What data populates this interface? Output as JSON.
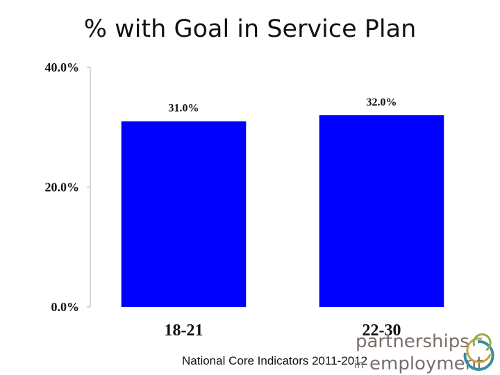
{
  "slide": {
    "title": "% with Goal in Service Plan",
    "source": "National Core Indicators 2011-2012"
  },
  "logo": {
    "line1": "partnerships",
    "line2_prefix": "in",
    "line2": "employment",
    "colors": {
      "text": "#7a6e6a",
      "ring_teal": "#3a8fa0",
      "ring_gold": "#c8a33a",
      "ring_green": "#8fb04a"
    }
  },
  "chart_data": {
    "type": "bar",
    "categories": [
      "18-21",
      "22-30"
    ],
    "values": [
      31.0,
      32.0
    ],
    "data_labels": [
      "31.0%",
      "32.0%"
    ],
    "y_ticks": [
      0,
      20,
      40
    ],
    "y_tick_labels": [
      "0.0%",
      "20.0%",
      "40.0%"
    ],
    "ylim": [
      0,
      40
    ],
    "title": "% with Goal in Service Plan",
    "xlabel": "",
    "ylabel": "",
    "grid": false,
    "bar_color": "#0000ff"
  }
}
